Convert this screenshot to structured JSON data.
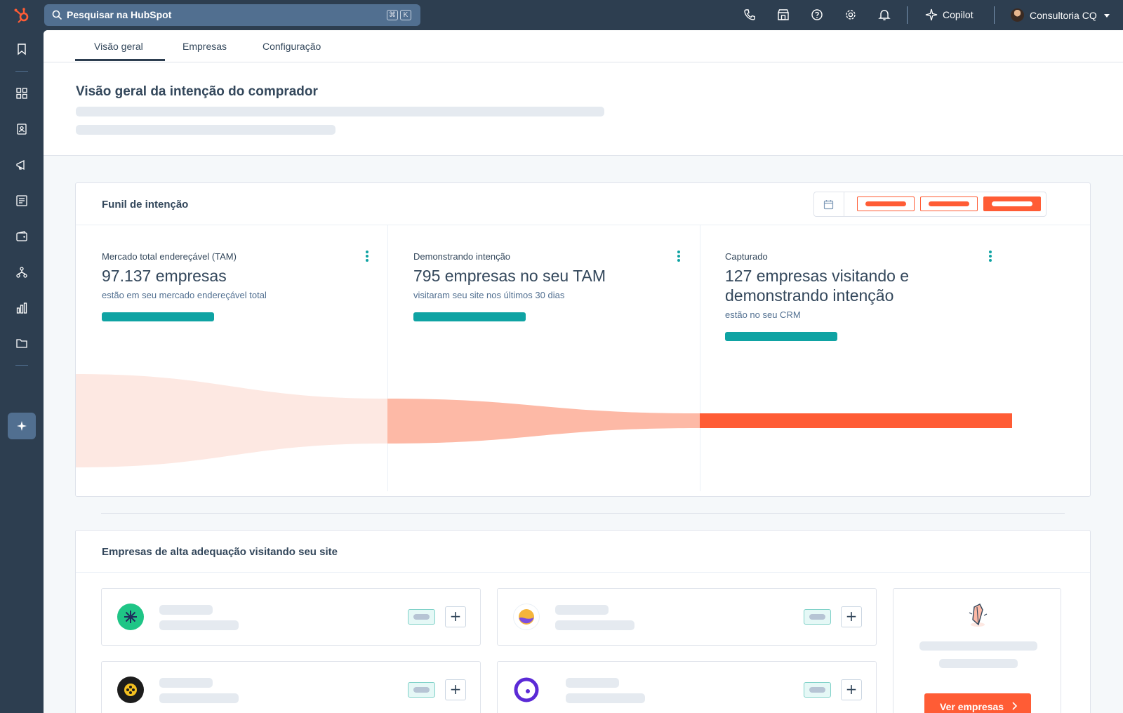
{
  "topbar": {
    "search_placeholder": "Pesquisar na HubSpot",
    "shortcut_keys": [
      "⌘",
      "K"
    ],
    "copilot_label": "Copilot",
    "account_name": "Consultoria CQ",
    "icons": [
      "phone-icon",
      "marketplace-icon",
      "help-icon",
      "settings-icon",
      "notifications-icon"
    ]
  },
  "sidebar": {
    "icons": [
      "bookmark-icon",
      "dashboard-icon",
      "contacts-icon",
      "marketing-icon",
      "content-icon",
      "commerce-icon",
      "automation-icon",
      "reporting-icon",
      "library-icon",
      "breeze-icon"
    ]
  },
  "tabs": [
    {
      "label": "Visão geral",
      "active": true
    },
    {
      "label": "Empresas",
      "active": false
    },
    {
      "label": "Configuração",
      "active": false
    }
  ],
  "page": {
    "title": "Visão geral da intenção do comprador"
  },
  "funnel": {
    "title": "Funil de intenção",
    "metrics": [
      {
        "label": "Mercado total endereçável (TAM)",
        "value": "97.137 empresas",
        "sub": "estão em seu mercado endereçável total"
      },
      {
        "label": "Demonstrando intenção",
        "value": "795 empresas no seu TAM",
        "sub": "visitaram seu site nos últimos 30 dias"
      },
      {
        "label": "Capturado",
        "value": "127 empresas visitando e demonstrando intenção",
        "sub": "estão no seu CRM"
      }
    ],
    "colors": {
      "tam": "#fde8e2",
      "intent": "#fdb9a6",
      "captured": "#ff5c35",
      "bar": "#0fa3a3"
    }
  },
  "companies": {
    "title": "Empresas de alta adequação visitando seu site",
    "cta_label": "Ver empresas",
    "logo_colors": [
      "#1fc586",
      "#f5b53b",
      "#f4c020",
      "#5b2ad6"
    ]
  }
}
